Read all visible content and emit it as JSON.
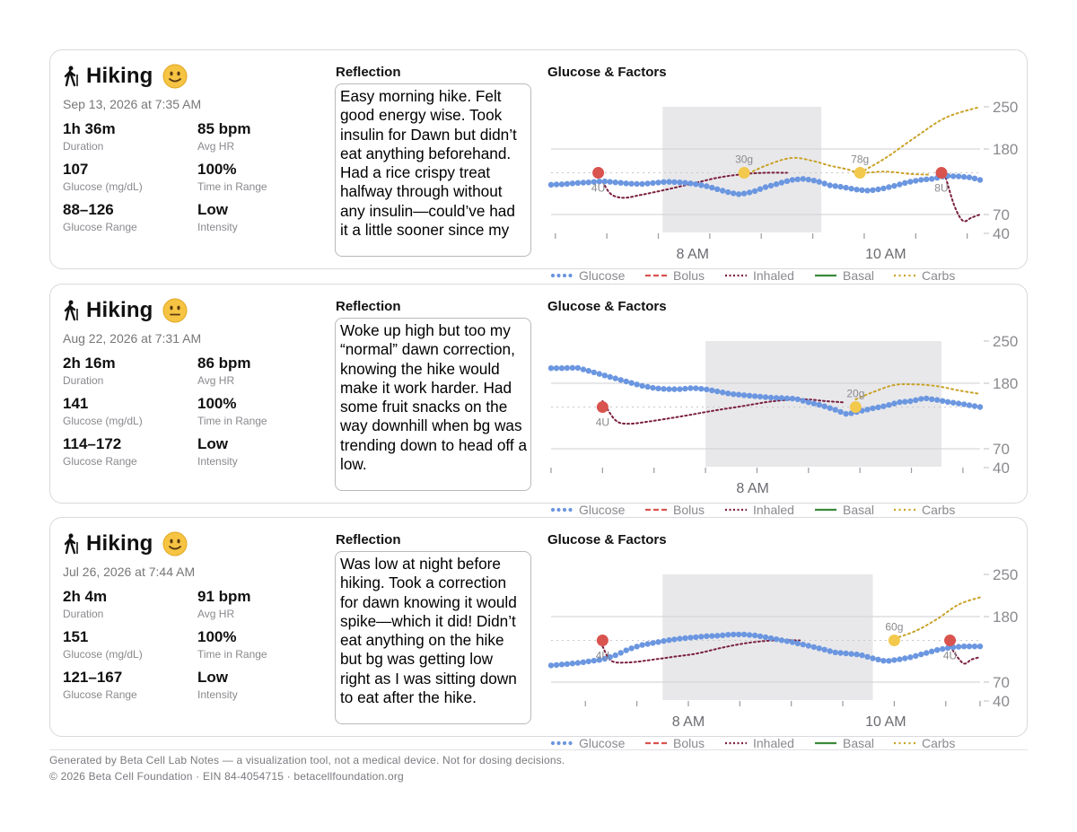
{
  "colors": {
    "glucose": "#6b96e0",
    "bolus": "#d9534f",
    "inhaled": "#7a1f3d",
    "basal": "#3a8a3a",
    "carbs": "#c9a227",
    "carb_marker": "#f2c94c",
    "window": "#e8e8eb",
    "axis_text": "#8a8a8f"
  },
  "reflection_heading": "Reflection",
  "chart_heading": "Glucose & Factors",
  "legend": [
    "Glucose",
    "Bolus",
    "Inhaled",
    "Basal",
    "Carbs"
  ],
  "cards": [
    {
      "title": "Hiking",
      "mood": "happy",
      "date": "Sep 13, 2026 at 7:35 AM",
      "stats": [
        {
          "value": "1h 36m",
          "label": "Duration"
        },
        {
          "value": "85 bpm",
          "label": "Avg HR"
        },
        {
          "value": "107",
          "label": "Glucose (mg/dL)"
        },
        {
          "value": "100%",
          "label": "Time in Range"
        },
        {
          "value": "88–126",
          "label": "Glucose Range"
        },
        {
          "value": "Low",
          "label": "Intensity"
        }
      ],
      "reflection": "Easy morning hike. Felt good energy wise. Took insulin for Dawn but didn’t eat anything beforehand. Had a rice crispy treat halfway through without any insulin—could’ve had it a little sooner since my"
    },
    {
      "title": "Hiking",
      "mood": "neutral",
      "date": "Aug 22, 2026 at 7:31 AM",
      "stats": [
        {
          "value": "2h 16m",
          "label": "Duration"
        },
        {
          "value": "86 bpm",
          "label": "Avg HR"
        },
        {
          "value": "141",
          "label": "Glucose (mg/dL)"
        },
        {
          "value": "100%",
          "label": "Time in Range"
        },
        {
          "value": "114–172",
          "label": "Glucose Range"
        },
        {
          "value": "Low",
          "label": "Intensity"
        }
      ],
      "reflection": "Woke up high but too my “normal” dawn correction, knowing the hike would make it work harder. Had some fruit snacks on the way downhill when bg was trending down to head off a low."
    },
    {
      "title": "Hiking",
      "mood": "happy",
      "date": "Jul 26, 2026 at 7:44 AM",
      "stats": [
        {
          "value": "2h 4m",
          "label": "Duration"
        },
        {
          "value": "91 bpm",
          "label": "Avg HR"
        },
        {
          "value": "151",
          "label": "Glucose (mg/dL)"
        },
        {
          "value": "100%",
          "label": "Time in Range"
        },
        {
          "value": "121–167",
          "label": "Glucose Range"
        },
        {
          "value": "Low",
          "label": "Intensity"
        }
      ],
      "reflection": "Was low at night before hiking. Took a correction for dawn knowing it would spike—which it did! Didn’t eat anything on the hike but bg was getting low right as I was sitting down to eat after the hike."
    }
  ],
  "chart_data": [
    {
      "type": "line",
      "title": "Glucose & Factors",
      "y_ticks": [
        40,
        70,
        180,
        250
      ],
      "x_tick_labels": [
        "8 AM",
        "10 AM"
      ],
      "x_tick_label_pos": [
        0.33,
        0.78
      ],
      "activity_window": [
        0.26,
        0.63
      ],
      "x_ticks": [
        0.01,
        0.13,
        0.25,
        0.37,
        0.49,
        0.61,
        0.73,
        0.85,
        0.97
      ],
      "glucose": [
        [
          0.0,
          120
        ],
        [
          0.03,
          121
        ],
        [
          0.06,
          123
        ],
        [
          0.09,
          124
        ],
        [
          0.12,
          126
        ],
        [
          0.15,
          124
        ],
        [
          0.18,
          122
        ],
        [
          0.21,
          121
        ],
        [
          0.24,
          123
        ],
        [
          0.27,
          125
        ],
        [
          0.3,
          124
        ],
        [
          0.33,
          122
        ],
        [
          0.36,
          118
        ],
        [
          0.39,
          112
        ],
        [
          0.42,
          106
        ],
        [
          0.44,
          104
        ],
        [
          0.47,
          108
        ],
        [
          0.5,
          116
        ],
        [
          0.53,
          122
        ],
        [
          0.56,
          128
        ],
        [
          0.59,
          130
        ],
        [
          0.62,
          126
        ],
        [
          0.65,
          119
        ],
        [
          0.68,
          116
        ],
        [
          0.71,
          112
        ],
        [
          0.74,
          110
        ],
        [
          0.77,
          113
        ],
        [
          0.8,
          118
        ],
        [
          0.83,
          124
        ],
        [
          0.86,
          128
        ],
        [
          0.89,
          130
        ],
        [
          0.92,
          135
        ],
        [
          0.95,
          134
        ],
        [
          0.98,
          132
        ],
        [
          1.0,
          128
        ]
      ],
      "bolus": [
        {
          "x": 0.11,
          "label": "4U"
        },
        {
          "x": 0.91,
          "label": "8U"
        }
      ],
      "carbs": [
        {
          "x": 0.45,
          "label": "30g"
        },
        {
          "x": 0.72,
          "label": "78g"
        }
      ],
      "inhaled": [
        [
          0.12,
          125
        ],
        [
          0.14,
          104
        ],
        [
          0.17,
          98
        ],
        [
          0.21,
          103
        ],
        [
          0.27,
          112
        ],
        [
          0.33,
          122
        ],
        [
          0.39,
          132
        ],
        [
          0.45,
          138
        ],
        [
          0.5,
          140
        ],
        [
          0.55,
          140
        ],
        null,
        [
          0.92,
          132
        ],
        [
          0.94,
          85
        ],
        [
          0.96,
          60
        ],
        [
          0.98,
          65
        ],
        [
          1.0,
          70
        ]
      ],
      "carbs_curve": [
        [
          0.45,
          135
        ],
        [
          0.5,
          152
        ],
        [
          0.56,
          165
        ],
        [
          0.61,
          160
        ],
        [
          0.65,
          152
        ],
        [
          0.69,
          146
        ],
        [
          0.72,
          140
        ],
        [
          0.78,
          142
        ],
        [
          0.84,
          138
        ],
        [
          0.88,
          137
        ],
        null,
        [
          0.72,
          140
        ],
        [
          0.78,
          165
        ],
        [
          0.85,
          200
        ],
        [
          0.92,
          232
        ],
        [
          1.0,
          250
        ]
      ]
    },
    {
      "type": "line",
      "title": "Glucose & Factors",
      "y_ticks": [
        40,
        70,
        180,
        250
      ],
      "x_tick_labels": [
        "8 AM"
      ],
      "x_tick_label_pos": [
        0.47
      ],
      "activity_window": [
        0.36,
        0.91
      ],
      "x_ticks": [
        0.0,
        0.12,
        0.24,
        0.36,
        0.48,
        0.6,
        0.72,
        0.84,
        0.96
      ],
      "glucose": [
        [
          0.0,
          205
        ],
        [
          0.03,
          205
        ],
        [
          0.06,
          206
        ],
        [
          0.09,
          200
        ],
        [
          0.12,
          194
        ],
        [
          0.15,
          188
        ],
        [
          0.18,
          182
        ],
        [
          0.21,
          176
        ],
        [
          0.24,
          172
        ],
        [
          0.27,
          170
        ],
        [
          0.3,
          170
        ],
        [
          0.33,
          172
        ],
        [
          0.36,
          170
        ],
        [
          0.39,
          166
        ],
        [
          0.42,
          162
        ],
        [
          0.45,
          160
        ],
        [
          0.48,
          158
        ],
        [
          0.51,
          156
        ],
        [
          0.54,
          155
        ],
        [
          0.57,
          154
        ],
        [
          0.6,
          148
        ],
        [
          0.63,
          143
        ],
        [
          0.66,
          136
        ],
        [
          0.69,
          128
        ],
        [
          0.72,
          133
        ],
        [
          0.75,
          138
        ],
        [
          0.78,
          142
        ],
        [
          0.81,
          148
        ],
        [
          0.84,
          150
        ],
        [
          0.87,
          155
        ],
        [
          0.9,
          152
        ],
        [
          0.93,
          148
        ],
        [
          0.96,
          145
        ],
        [
          1.0,
          140
        ]
      ],
      "bolus": [
        {
          "x": 0.12,
          "label": "4U"
        }
      ],
      "carbs": [
        {
          "x": 0.71,
          "label": "20g"
        }
      ],
      "inhaled": [
        [
          0.12,
          150
        ],
        [
          0.15,
          118
        ],
        [
          0.18,
          112
        ],
        [
          0.23,
          116
        ],
        [
          0.3,
          124
        ],
        [
          0.38,
          134
        ],
        [
          0.45,
          142
        ],
        [
          0.52,
          150
        ],
        [
          0.59,
          153
        ],
        [
          0.64,
          150
        ],
        [
          0.68,
          148
        ]
      ],
      "carbs_curve": [
        [
          0.71,
          153
        ],
        [
          0.75,
          165
        ],
        [
          0.8,
          177
        ],
        [
          0.85,
          178
        ],
        [
          0.9,
          175
        ],
        [
          0.95,
          168
        ],
        [
          1.0,
          162
        ]
      ]
    },
    {
      "type": "line",
      "title": "Glucose & Factors",
      "y_ticks": [
        40,
        70,
        180,
        250
      ],
      "x_tick_labels": [
        "8 AM",
        "10 AM"
      ],
      "x_tick_label_pos": [
        0.32,
        0.78
      ],
      "activity_window": [
        0.26,
        0.75
      ],
      "x_ticks": [
        0.08,
        0.2,
        0.32,
        0.44,
        0.56,
        0.68,
        0.8,
        0.92,
        1.0
      ],
      "glucose": [
        [
          0.0,
          98
        ],
        [
          0.03,
          100
        ],
        [
          0.06,
          102
        ],
        [
          0.09,
          105
        ],
        [
          0.12,
          108
        ],
        [
          0.15,
          115
        ],
        [
          0.18,
          125
        ],
        [
          0.21,
          132
        ],
        [
          0.24,
          136
        ],
        [
          0.27,
          140
        ],
        [
          0.3,
          143
        ],
        [
          0.33,
          145
        ],
        [
          0.36,
          147
        ],
        [
          0.39,
          148
        ],
        [
          0.42,
          150
        ],
        [
          0.45,
          150
        ],
        [
          0.48,
          148
        ],
        [
          0.51,
          144
        ],
        [
          0.54,
          140
        ],
        [
          0.57,
          136
        ],
        [
          0.6,
          131
        ],
        [
          0.63,
          126
        ],
        [
          0.66,
          120
        ],
        [
          0.69,
          118
        ],
        [
          0.72,
          116
        ],
        [
          0.75,
          110
        ],
        [
          0.78,
          105
        ],
        [
          0.81,
          108
        ],
        [
          0.84,
          112
        ],
        [
          0.87,
          118
        ],
        [
          0.9,
          124
        ],
        [
          0.93,
          128
        ],
        [
          0.96,
          130
        ],
        [
          1.0,
          130
        ]
      ],
      "bolus": [
        {
          "x": 0.12,
          "label": "4U"
        },
        {
          "x": 0.93,
          "label": "4U"
        }
      ],
      "carbs": [
        {
          "x": 0.8,
          "label": "60g"
        }
      ],
      "inhaled": [
        [
          0.12,
          130
        ],
        [
          0.14,
          106
        ],
        [
          0.18,
          103
        ],
        [
          0.24,
          108
        ],
        [
          0.29,
          113
        ],
        [
          0.34,
          118
        ],
        [
          0.4,
          128
        ],
        [
          0.46,
          136
        ],
        [
          0.52,
          140
        ],
        [
          0.58,
          140
        ],
        null,
        [
          0.93,
          130
        ],
        [
          0.96,
          102
        ],
        [
          0.98,
          108
        ],
        [
          1.0,
          112
        ]
      ],
      "carbs_curve": [
        [
          0.8,
          143
        ],
        [
          0.85,
          156
        ],
        [
          0.9,
          176
        ],
        [
          0.95,
          200
        ],
        [
          1.0,
          212
        ]
      ]
    }
  ],
  "footer": {
    "line1": "Generated by Beta Cell Lab Notes — a visualization tool, not a medical device. Not for dosing decisions.",
    "line2": "© 2026 Beta Cell Foundation · EIN 84-4054715 · betacellfoundation.org"
  }
}
